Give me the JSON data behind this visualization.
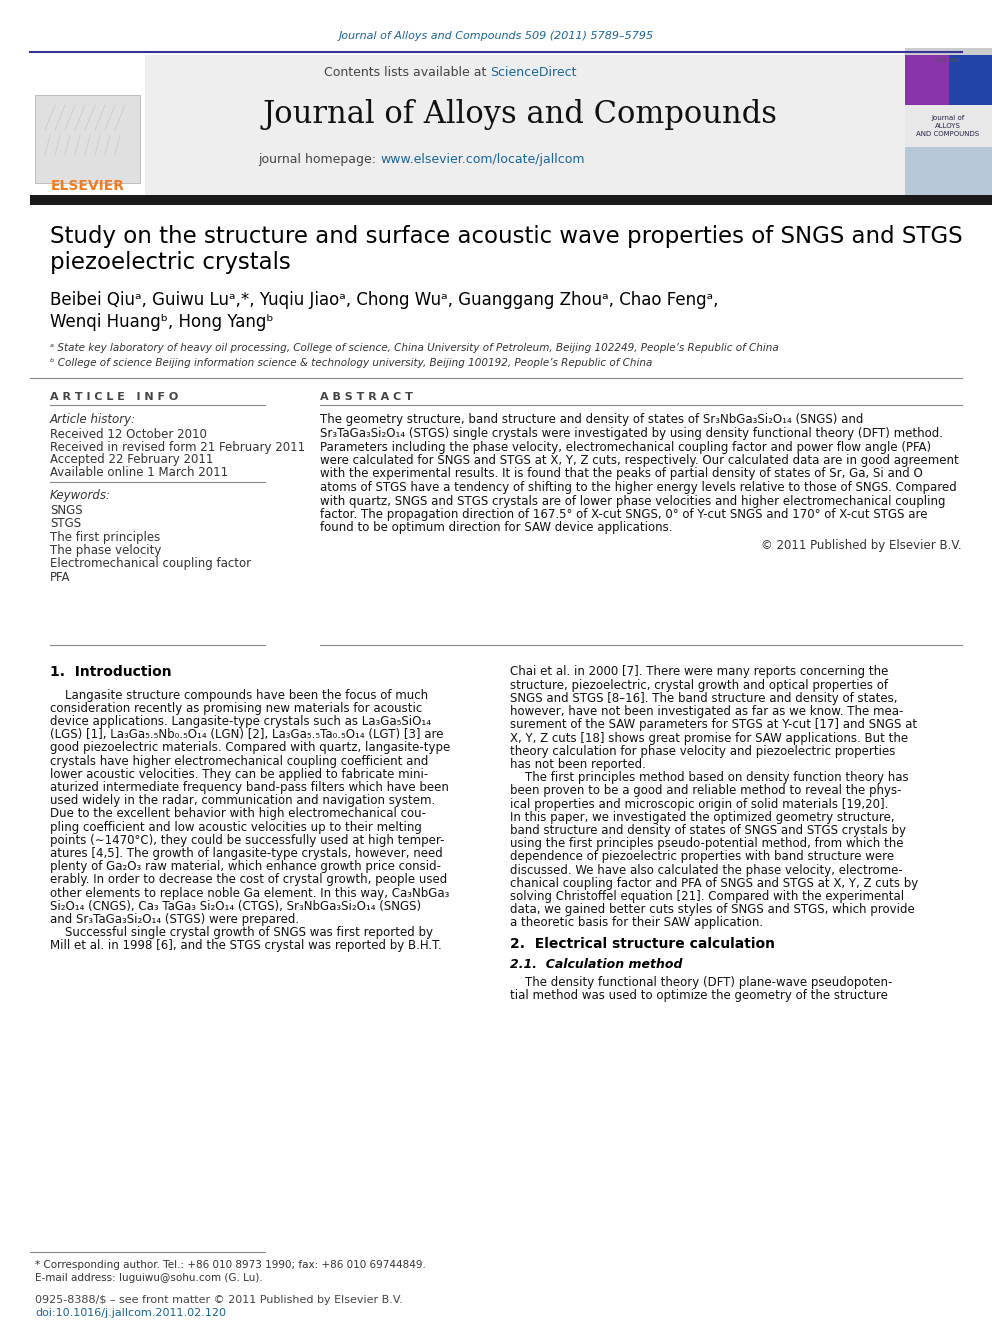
{
  "background_color": "#ffffff",
  "page_top_link": "Journal of Alloys and Compounds 509 (2011) 5789–5795",
  "header_contents_text": "Contents lists available at ",
  "header_sciencedirect": "ScienceDirect",
  "header_journal_title": "Journal of Alloys and Compounds",
  "header_homepage_url": "www.elsevier.com/locate/jallcom",
  "article_title_line1": "Study on the structure and surface acoustic wave properties of SNGS and STGS",
  "article_title_line2": "piezoelectric crystals",
  "authors": "Beibei Qiuᵃ, Guiwu Luᵃ,*, Yuqiu Jiaoᵃ, Chong Wuᵃ, Guanggang Zhouᵃ, Chao Fengᵃ,",
  "authors2": "Wenqi Huangᵇ, Hong Yangᵇ",
  "affil_a": "ᵃ State key laboratory of heavy oil processing, College of science, China University of Petroleum, Beijing 102249, People’s Republic of China",
  "affil_b": "ᵇ College of science Beijing information science & technology university, Beijing 100192, People’s Republic of China",
  "article_info_header": "A R T I C L E   I N F O",
  "abstract_header": "A B S T R A C T",
  "article_history_label": "Article history:",
  "received": "Received 12 October 2010",
  "revised": "Received in revised form 21 February 2011",
  "accepted": "Accepted 22 February 2011",
  "available": "Available online 1 March 2011",
  "keywords_label": "Keywords:",
  "keywords": [
    "SNGS",
    "STGS",
    "The first principles",
    "The phase velocity",
    "Electromechanical coupling factor",
    "PFA"
  ],
  "abstract_lines": [
    "The geometry structure, band structure and density of states of Sr₃NbGa₃Si₂O₁₄ (SNGS) and",
    "Sr₃TaGa₃Si₂O₁₄ (STGS) single crystals were investigated by using density functional theory (DFT) method.",
    "Parameters including the phase velocity, electromechanical coupling factor and power flow angle (PFA)",
    "were calculated for SNGS and STGS at X, Y, Z cuts, respectively. Our calculated data are in good agreement",
    "with the experimental results. It is found that the peaks of partial density of states of Sr, Ga, Si and O",
    "atoms of STGS have a tendency of shifting to the higher energy levels relative to those of SNGS. Compared",
    "with quartz, SNGS and STGS crystals are of lower phase velocities and higher electromechanical coupling",
    "factor. The propagation direction of 167.5° of X-cut SNGS, 0° of Y-cut SNGS and 170° of X-cut STGS are",
    "found to be optimum direction for SAW device applications."
  ],
  "copyright": "© 2011 Published by Elsevier B.V.",
  "section1_title": "1.  Introduction",
  "intro_left_lines": [
    "    Langasite structure compounds have been the focus of much",
    "consideration recently as promising new materials for acoustic",
    "device applications. Langasite-type crystals such as La₃Ga₅SiO₁₄",
    "(LGS) [1], La₃Ga₅.₅Nb₀.₅O₁₄ (LGN) [2], La₃Ga₅.₅Ta₀.₅O₁₄ (LGT) [3] are",
    "good piezoelectric materials. Compared with quartz, langasite-type",
    "crystals have higher electromechanical coupling coefficient and",
    "lower acoustic velocities. They can be applied to fabricate mini-",
    "aturized intermediate frequency band-pass filters which have been",
    "used widely in the radar, communication and navigation system.",
    "Due to the excellent behavior with high electromechanical cou-",
    "pling coefficient and low acoustic velocities up to their melting",
    "points (∼1470°C), they could be successfully used at high temper-",
    "atures [4,5]. The growth of langasite-type crystals, however, need",
    "plenty of Ga₂O₃ raw material, which enhance growth price consid-",
    "erably. In order to decrease the cost of crystal growth, people used",
    "other elements to replace noble Ga element. In this way, Ca₃NbGa₃",
    "Si₂O₁₄ (CNGS), Ca₃ TaGa₃ Si₂O₁₄ (CTGS), Sr₃NbGa₃Si₂O₁₄ (SNGS)",
    "and Sr₃TaGa₃Si₂O₁₄ (STGS) were prepared.",
    "    Successful single crystal growth of SNGS was first reported by",
    "Mill et al. in 1998 [6], and the STGS crystal was reported by B.H.T."
  ],
  "intro_right_lines": [
    "Chai et al. in 2000 [7]. There were many reports concerning the",
    "structure, piezoelectric, crystal growth and optical properties of",
    "SNGS and STGS [8–16]. The band structure and density of states,",
    "however, have not been investigated as far as we know. The mea-",
    "surement of the SAW parameters for STGS at Y-cut [17] and SNGS at",
    "X, Y, Z cuts [18] shows great promise for SAW applications. But the",
    "theory calculation for phase velocity and piezoelectric properties",
    "has not been reported.",
    "    The first principles method based on density function theory has",
    "been proven to be a good and reliable method to reveal the phys-",
    "ical properties and microscopic origin of solid materials [19,20].",
    "In this paper, we investigated the optimized geometry structure,",
    "band structure and density of states of SNGS and STGS crystals by",
    "using the first principles pseudo-potential method, from which the",
    "dependence of piezoelectric properties with band structure were",
    "discussed. We have also calculated the phase velocity, electrome-",
    "chanical coupling factor and PFA of SNGS and STGS at X, Y, Z cuts by",
    "solving Christoffel equation [21]. Compared with the experimental",
    "data, we gained better cuts styles of SNGS and STGS, which provide",
    "a theoretic basis for their SAW application."
  ],
  "section2_title": "2.  Electrical structure calculation",
  "section21_title": "2.1.  Calculation method",
  "section21_text": "    The density functional theory (DFT) plane-wave pseudopoten-",
  "section21_text2": "tial method was used to optimize the geometry of the structure",
  "footnote_star": "* Corresponding author. Tel.: +86 010 8973 1990; fax: +86 010 69744849.",
  "footnote_email": "E-mail address: luguiwu@sohu.com (G. Lu).",
  "footer_issn": "0925-8388/$ – see front matter © 2011 Published by Elsevier B.V.",
  "footer_doi": "doi:10.1016/j.jallcom.2011.02.120",
  "link_color": "#1a6496",
  "elsevier_orange": "#f47c20",
  "black": "#000000",
  "dark_bar": "#1a1a1a"
}
